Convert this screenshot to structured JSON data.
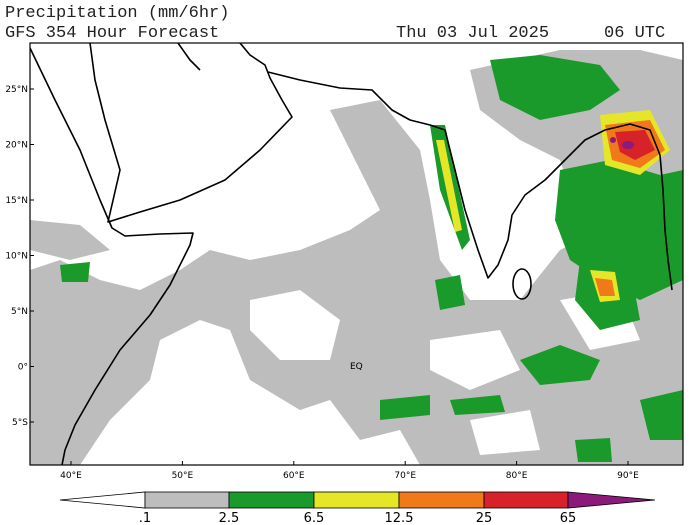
{
  "header": {
    "title": "Precipitation (mm/6hr)",
    "subtitle": "GFS 354 Hour Forecast",
    "date": "Thu 03 Jul 2025",
    "time": "06 UTC"
  },
  "map": {
    "lat_labels": [
      "25°N",
      "20°N",
      "15°N",
      "10°N",
      "5°N",
      "0°",
      "5°S"
    ],
    "lon_labels": [
      "40°E",
      "50°E",
      "60°E",
      "70°E",
      "80°E",
      "90°E"
    ],
    "equator_label": "EQ"
  },
  "colorbar": {
    "labels": [
      ".1",
      "2.5",
      "6.5",
      "12.5",
      "25",
      "65"
    ]
  }
}
